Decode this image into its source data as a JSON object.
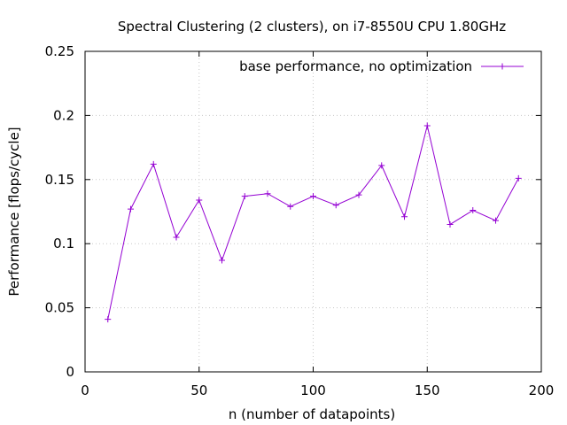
{
  "chart_data": {
    "type": "line",
    "title": "Spectral Clustering (2 clusters), on i7-8550U CPU 1.80GHz",
    "xlabel": "n (number of datapoints)",
    "ylabel": "Performance [flops/cycle]",
    "xlim": [
      0,
      200
    ],
    "ylim": [
      0,
      0.25
    ],
    "x_ticks": [
      0,
      50,
      100,
      150,
      200
    ],
    "y_ticks": [
      0,
      0.05,
      0.1,
      0.15,
      0.2,
      0.25
    ],
    "x_tick_labels": [
      "0",
      "50",
      "100",
      "150",
      "200"
    ],
    "y_tick_labels": [
      "0",
      "0.05",
      "0.1",
      "0.15",
      "0.2",
      "0.25"
    ],
    "grid": true,
    "legend_position": "top-right",
    "series": [
      {
        "name": "base performance, no optimization",
        "color": "#9400d3",
        "marker": "plus",
        "x": [
          10,
          20,
          30,
          40,
          50,
          60,
          70,
          80,
          90,
          100,
          110,
          120,
          130,
          140,
          150,
          160,
          170,
          180,
          190
        ],
        "y": [
          0.041,
          0.127,
          0.162,
          0.105,
          0.134,
          0.087,
          0.137,
          0.139,
          0.129,
          0.137,
          0.13,
          0.138,
          0.161,
          0.121,
          0.192,
          0.115,
          0.126,
          0.118,
          0.151
        ]
      }
    ]
  }
}
